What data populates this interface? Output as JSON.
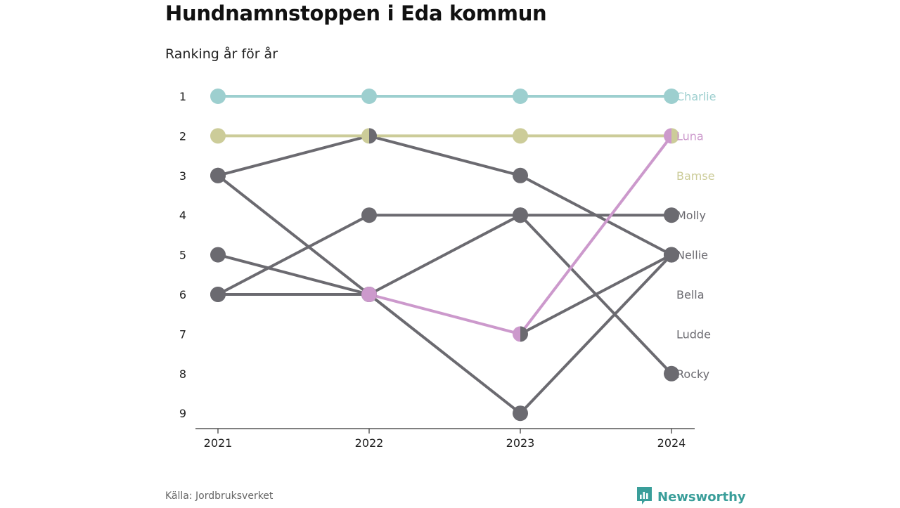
{
  "title": "Hundnamnstoppen i Eda kommun",
  "subtitle": "Ranking år för år",
  "source": "Källa: Jordbruksverket",
  "logo_text": "Newsworthy",
  "logo_icon": "bar-chart-speech-bubble-icon",
  "chart_data": {
    "type": "line",
    "chart_kind": "bump-chart",
    "x": [
      "2021",
      "2022",
      "2023",
      "2024"
    ],
    "y_ticks": [
      1,
      2,
      3,
      4,
      5,
      6,
      7,
      8,
      9
    ],
    "y_inverted": true,
    "ylim": [
      1,
      9
    ],
    "grid": false,
    "series": [
      {
        "name": "Charlie",
        "ranks": [
          1,
          1,
          1,
          1
        ],
        "color": "#9dcfcf",
        "highlight": true
      },
      {
        "name": "Luna",
        "ranks": [
          null,
          6,
          7,
          2
        ],
        "color": "#cc99cc",
        "highlight": true
      },
      {
        "name": "Bamse",
        "ranks": [
          2,
          2,
          2,
          2
        ],
        "color": "#cccc99",
        "highlight": true
      },
      {
        "name": "Molly",
        "ranks": [
          6,
          4,
          4,
          4
        ],
        "color": "#6b6a70",
        "highlight": false
      },
      {
        "name": "Nellie",
        "ranks": [
          3,
          2,
          3,
          5
        ],
        "color": "#6b6a70",
        "highlight": false
      },
      {
        "name": "Bella",
        "ranks": [
          5,
          6,
          null,
          null
        ],
        "color": "#6b6a70",
        "highlight": false
      },
      {
        "name": "Ludde",
        "ranks": [
          6,
          6,
          4,
          8
        ],
        "color": "#6b6a70",
        "highlight": false
      },
      {
        "name": "Rocky",
        "ranks": [
          3,
          6,
          9,
          5
        ],
        "color": "#6b6a70",
        "highlight": false
      }
    ],
    "end_labels": [
      {
        "name": "Charlie",
        "rank": 1,
        "color": "#9dcfcf"
      },
      {
        "name": "Luna",
        "rank": 2,
        "color": "#cc99cc"
      },
      {
        "name": "Bamse",
        "rank": 3,
        "color": "#cccc99"
      },
      {
        "name": "Molly",
        "rank": 4,
        "color": "#6b6a70"
      },
      {
        "name": "Nellie",
        "rank": 5,
        "color": "#6b6a70"
      },
      {
        "name": "Bella",
        "rank": 6,
        "color": "#6b6a70"
      },
      {
        "name": "Ludde",
        "rank": 7,
        "color": "#6b6a70"
      },
      {
        "name": "Rocky",
        "rank": 8,
        "color": "#6b6a70"
      }
    ],
    "extra_segments": [
      {
        "ranks": [
          null,
          null,
          7,
          5
        ],
        "color": "#6b6a70"
      }
    ],
    "half_markers": [
      {
        "x": "2022",
        "rank": 2,
        "left": "#cccc99",
        "right": "#6b6a70"
      },
      {
        "x": "2023",
        "rank": 7,
        "left": "#cc99cc",
        "right": "#6b6a70"
      },
      {
        "x": "2024",
        "rank": 2,
        "left": "#cc99cc",
        "right": "#cccc99"
      }
    ],
    "colors": {
      "teal": "#9dcfcf",
      "purple": "#cc99cc",
      "khaki": "#cccc99",
      "gray": "#6b6a70",
      "axis": "#333333"
    }
  }
}
